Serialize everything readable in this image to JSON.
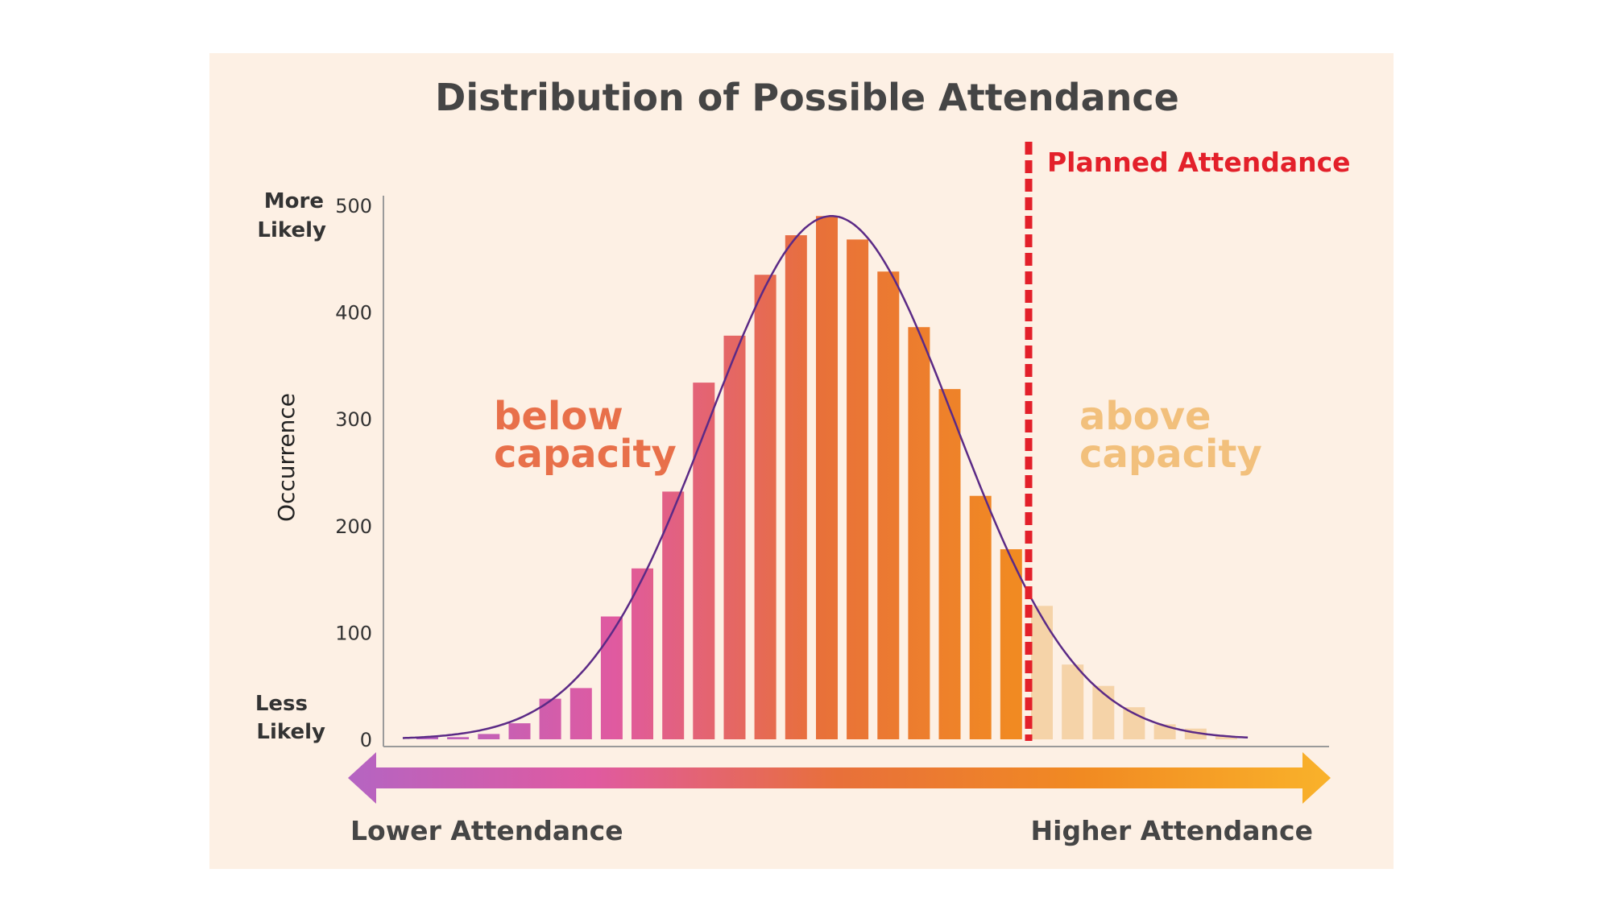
{
  "chart_data": {
    "type": "bar",
    "title": "Distribution of Possible Attendance",
    "ylabel": "Occurrence",
    "ylim": [
      0,
      500
    ],
    "yticks": [
      "0",
      "100",
      "200",
      "300",
      "400",
      "500"
    ],
    "y_top_label": [
      "More",
      "Likely"
    ],
    "y_bottom_label": [
      "Less",
      "Likely"
    ],
    "x_left_label": "Lower Attendance",
    "x_right_label": "Higher Attendance",
    "series": [
      {
        "values": [
          2,
          2,
          5,
          15,
          38,
          48,
          115,
          160,
          232,
          334,
          378,
          435,
          472,
          490,
          468,
          438,
          386,
          328,
          228,
          178,
          125,
          70,
          50,
          30,
          14,
          10,
          3
        ]
      }
    ],
    "planned_index": 20,
    "annotations": {
      "below": [
        "below",
        "capacity"
      ],
      "above": [
        "above",
        "capacity"
      ],
      "planned": "Planned Attendance"
    },
    "colors": {
      "background": "#fdf0e4",
      "planned_line": "#e3202a",
      "curve": "#5b2a86",
      "below_text": "#e8704a",
      "above_text": "#f2c07c",
      "above_bars": "#f5d3a8",
      "title": "#454545",
      "axis_text": "#333333",
      "gradient_stops": [
        "#b564c2",
        "#e05aa0",
        "#e8703a",
        "#f18a22",
        "#f9b12a"
      ]
    },
    "legend": "none",
    "grid": false
  }
}
